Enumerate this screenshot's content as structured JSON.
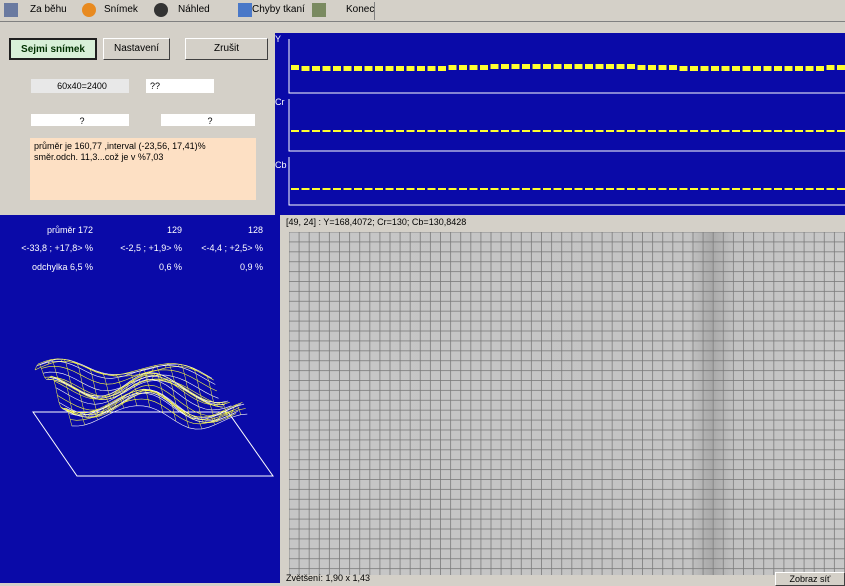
{
  "toolbar": {
    "items": [
      "Za běhu",
      "Snímek",
      "Náhled",
      "Chyby tkaní",
      "Konec"
    ]
  },
  "capture_panel": {
    "buttons": [
      "Sejmi snímek",
      "Nastavení",
      "Zrušit"
    ],
    "fields": [
      "60x40=2400",
      "??",
      "?",
      "?"
    ],
    "message": "průměr je 160,77 ,interval (-23,56, 17,41)% směr.odch. 11,3...což je v %7,03"
  },
  "channel_plots": {
    "labels": [
      "Y",
      "Cr",
      "Cb"
    ]
  },
  "stats": {
    "rows": [
      [
        "průměr  172",
        "129",
        "128"
      ],
      [
        "<-33,8 ; +17,8> %",
        "<-2,5 ; +1,9> %",
        "<-4,4 ; +2,5> %"
      ],
      [
        "odchylka 6,5 %",
        "0,6 %",
        "0,9 %"
      ]
    ]
  },
  "image_view": {
    "status": "[49, 24] :  Y=168,4072; Cr=130; Cb=130,8428",
    "zoom": "Zvětšení: 1,90 x 1,43",
    "button": "Zobraz síť"
  }
}
